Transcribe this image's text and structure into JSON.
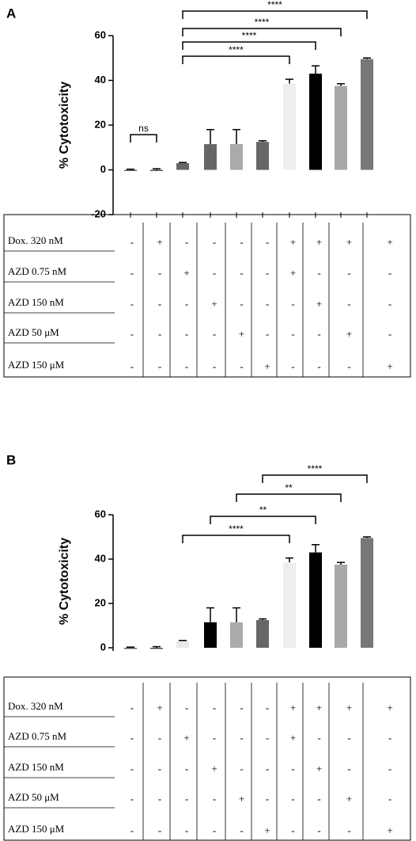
{
  "chart_data": [
    {
      "type": "bar",
      "panel": "A",
      "y_label": "% Cytotoxicity",
      "values": [
        -0.5,
        -0.5,
        3,
        11.5,
        11.5,
        12.5,
        38.5,
        43,
        37.5,
        49.5
      ],
      "errors": [
        0.3,
        0.5,
        0.3,
        6.5,
        6.5,
        0.5,
        2,
        3.5,
        1,
        0.5
      ],
      "colors": [
        "#555555",
        "#444444",
        "#666666",
        "#666666",
        "#aaaaaa",
        "#666666",
        "#eeeeee",
        "#000000",
        "#a8a8a8",
        "#777777"
      ],
      "ylim": [
        -20,
        60
      ],
      "yticks": [
        -20,
        0,
        20,
        40,
        60
      ],
      "annotations": [
        "ns",
        "****",
        "****",
        "****",
        "****"
      ],
      "table": {
        "rows": [
          {
            "label": "Dox. 320 nM",
            "cells": [
              "-",
              "+",
              "-",
              "-",
              "-",
              "-",
              "+",
              "+",
              "+",
              "+"
            ]
          },
          {
            "label": "AZD 0.75 nM",
            "cells": [
              "-",
              "-",
              "+",
              "-",
              "-",
              "-",
              "+",
              "-",
              "-",
              "-"
            ]
          },
          {
            "label": "AZD 150 nM",
            "cells": [
              "-",
              "-",
              "-",
              "+",
              "-",
              "-",
              "-",
              "+",
              "-",
              "-"
            ]
          },
          {
            "label": "AZD 50 μM",
            "cells": [
              "-",
              "-",
              "-",
              "-",
              "+",
              "-",
              "-",
              "-",
              "+",
              "-"
            ]
          },
          {
            "label": "AZD 150 μM",
            "cells": [
              "-",
              "-",
              "-",
              "-",
              "-",
              "+",
              "-",
              "-",
              "-",
              "+"
            ]
          }
        ]
      }
    },
    {
      "type": "bar",
      "panel": "B",
      "y_label": "% Cytotoxicity",
      "values": [
        -0.5,
        -0.5,
        3,
        11.5,
        11.5,
        12.5,
        38.5,
        43,
        37.5,
        49.5
      ],
      "errors": [
        0.3,
        0.5,
        0.3,
        6.5,
        6.5,
        0.5,
        2,
        3.5,
        1,
        0.5
      ],
      "colors": [
        "#555555",
        "#444444",
        "#e8e8e8",
        "#000000",
        "#aaaaaa",
        "#666666",
        "#eeeeee",
        "#000000",
        "#a8a8a8",
        "#777777"
      ],
      "ylim": [
        0,
        60
      ],
      "yticks": [
        0,
        20,
        40,
        60
      ],
      "annotations": [
        "****",
        "**",
        "**",
        "****"
      ],
      "table": {
        "rows": [
          {
            "label": "Dox. 320 nM",
            "cells": [
              "-",
              "+",
              "-",
              "-",
              "-",
              "-",
              "+",
              "+",
              "+",
              "+"
            ]
          },
          {
            "label": "AZD 0.75 nM",
            "cells": [
              "-",
              "-",
              "+",
              "-",
              "-",
              "-",
              "+",
              "-",
              "-",
              "-"
            ]
          },
          {
            "label": "AZD 150 nM",
            "cells": [
              "-",
              "-",
              "-",
              "+",
              "-",
              "-",
              "-",
              "+",
              "-",
              "-"
            ]
          },
          {
            "label": "AZD 50 μM",
            "cells": [
              "-",
              "-",
              "-",
              "-",
              "+",
              "-",
              "-",
              "-",
              "+",
              "-"
            ]
          },
          {
            "label": "AZD 150 μM",
            "cells": [
              "-",
              "-",
              "-",
              "-",
              "-",
              "+",
              "-",
              "-",
              "-",
              "+"
            ]
          }
        ]
      }
    }
  ]
}
